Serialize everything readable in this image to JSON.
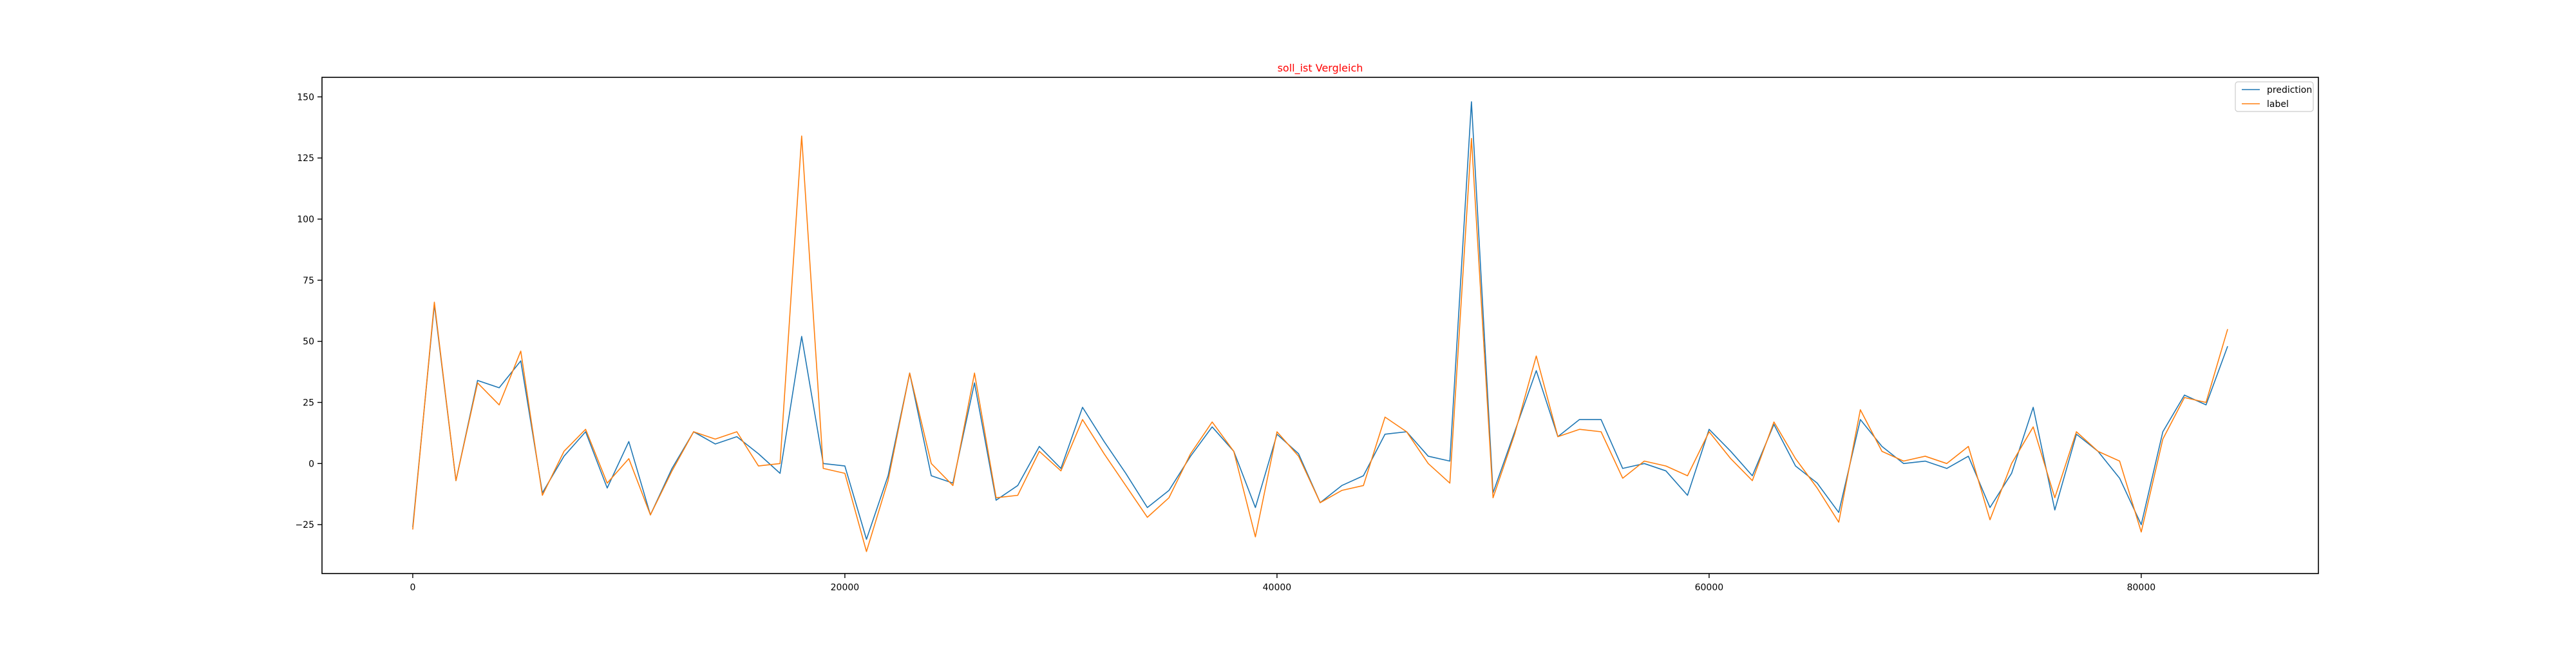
{
  "chart_data": {
    "type": "line",
    "title": "soll_ist Vergleich",
    "title_color": "#ff0000",
    "xlabel": "",
    "ylabel": "",
    "xlim": [
      -4200,
      88200
    ],
    "ylim": [
      -45,
      158
    ],
    "x_ticks": [
      0,
      20000,
      40000,
      60000,
      80000
    ],
    "y_ticks": [
      -25,
      0,
      25,
      50,
      75,
      100,
      125,
      150
    ],
    "grid": false,
    "legend_position": "top-right",
    "x": [
      0,
      1000,
      2000,
      3000,
      4000,
      5000,
      6000,
      7000,
      8000,
      9000,
      10000,
      11000,
      12000,
      13000,
      14000,
      15000,
      16000,
      17000,
      18000,
      19000,
      20000,
      21000,
      22000,
      23000,
      24000,
      25000,
      26000,
      27000,
      28000,
      29000,
      30000,
      31000,
      32000,
      33000,
      34000,
      35000,
      36000,
      37000,
      38000,
      39000,
      40000,
      41000,
      42000,
      43000,
      44000,
      45000,
      46000,
      47000,
      48000,
      49000,
      50000,
      51000,
      52000,
      53000,
      54000,
      55000,
      56000,
      57000,
      58000,
      59000,
      60000,
      61000,
      62000,
      63000,
      64000,
      65000,
      66000,
      67000,
      68000,
      69000,
      70000,
      71000,
      72000,
      73000,
      74000,
      75000,
      76000,
      77000,
      78000,
      79000,
      80000,
      81000,
      82000,
      83000,
      84000
    ],
    "series": [
      {
        "name": "prediction",
        "color": "#1f77b4",
        "values": [
          -26,
          65,
          -7,
          34,
          31,
          42,
          -12,
          3,
          13,
          -10,
          9,
          -21,
          -2,
          13,
          8,
          11,
          4,
          -4,
          52,
          0,
          -1,
          -31,
          -5,
          37,
          -5,
          -8,
          33,
          -15,
          -9,
          7,
          -2,
          23,
          9,
          -4,
          -18,
          -11,
          3,
          15,
          5,
          -18,
          12,
          4,
          -16,
          -9,
          -5,
          12,
          13,
          3,
          1,
          148,
          -12,
          13,
          38,
          11,
          18,
          18,
          -2,
          0,
          -3,
          -13,
          14,
          5,
          -5,
          16,
          -1,
          -8,
          -20,
          18,
          7,
          0,
          1,
          -2,
          3,
          -18,
          -4,
          23,
          -19,
          12,
          5,
          -6,
          -25,
          13,
          28,
          24,
          48
        ]
      },
      {
        "name": "label",
        "color": "#ff7f0e",
        "values": [
          -27,
          66,
          -7,
          33,
          24,
          46,
          -13,
          5,
          14,
          -8,
          2,
          -21,
          -3,
          13,
          10,
          13,
          -1,
          0,
          134,
          -2,
          -4,
          -36,
          -7,
          37,
          0,
          -9,
          37,
          -14,
          -13,
          5,
          -3,
          18,
          4,
          -9,
          -22,
          -14,
          4,
          17,
          5,
          -30,
          13,
          3,
          -16,
          -11,
          -9,
          19,
          13,
          0,
          -8,
          133,
          -14,
          12,
          44,
          11,
          14,
          13,
          -6,
          1,
          -1,
          -5,
          13,
          2,
          -7,
          17,
          2,
          -10,
          -24,
          22,
          5,
          1,
          3,
          0,
          7,
          -23,
          0,
          15,
          -14,
          13,
          5,
          1,
          -28,
          10,
          27,
          25,
          55
        ]
      }
    ]
  }
}
